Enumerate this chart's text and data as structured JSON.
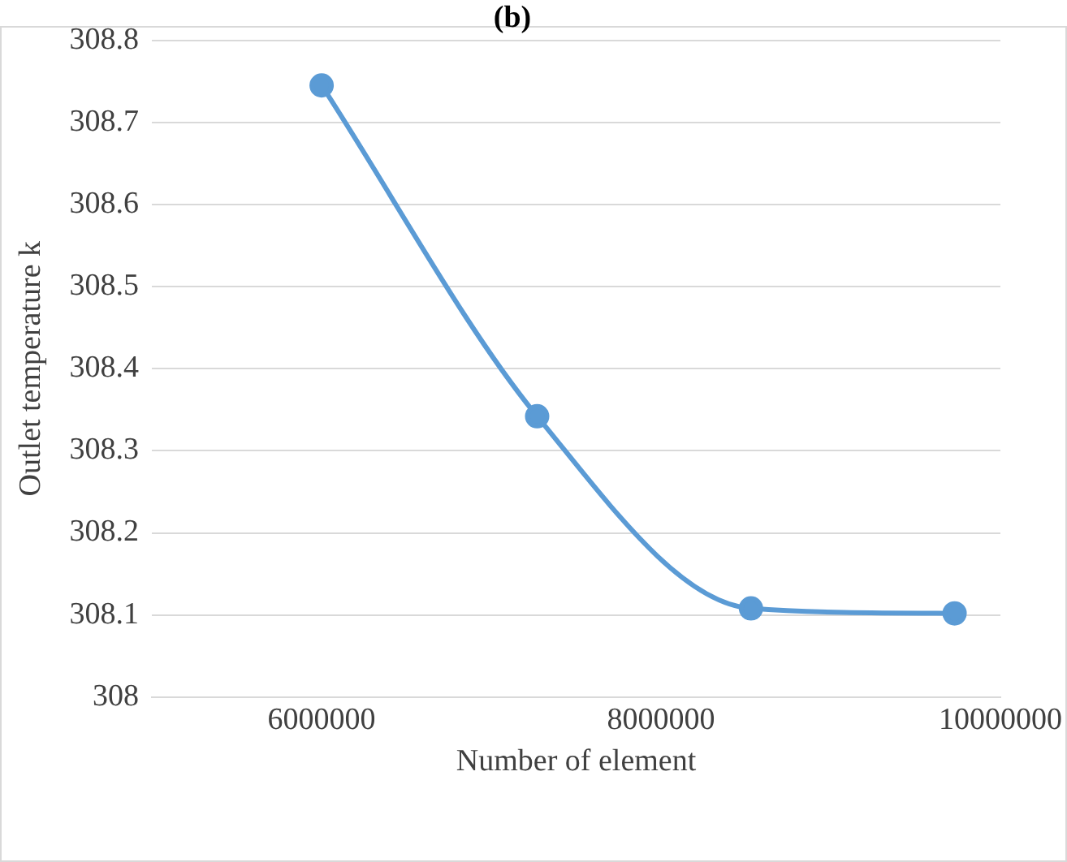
{
  "chart_data": {
    "type": "line",
    "title": "(b)",
    "xlabel": "Number of element",
    "ylabel": "Outlet temperature k",
    "x": [
      6000000,
      7270000,
      8530000,
      9730000
    ],
    "series": [
      {
        "color": "#5b9bd5",
        "values": [
          308.745,
          308.342,
          308.108,
          308.102
        ]
      }
    ],
    "xlim": [
      5000000,
      10000000
    ],
    "xticks": [
      6000000,
      8000000,
      10000000
    ],
    "ylim": [
      308,
      308.8
    ],
    "yticks": [
      308,
      308.1,
      308.2,
      308.3,
      308.4,
      308.5,
      308.6,
      308.7,
      308.8
    ],
    "grid": "y",
    "marker": "circle",
    "line_style": "solid",
    "legend": false
  }
}
